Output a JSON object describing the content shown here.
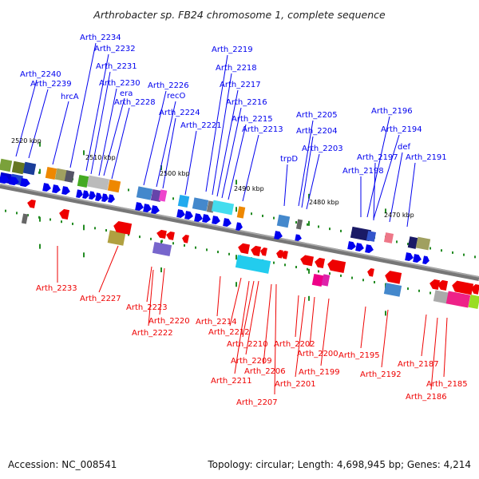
{
  "header": {
    "title": "Arthrobacter sp. FB24 chromosome 1, complete sequence"
  },
  "footer": {
    "accession": "Accession: NC_008541",
    "summary": "Topology: circular; Length: 4,698,945 bp; Genes: 4,214"
  },
  "colors": {
    "forward": "#0000ee",
    "reverse": "#ee0000",
    "backbone": "#777777",
    "tick": "#228b22"
  },
  "ticks": [
    "2520 kbp",
    "2510 kbp",
    "2500 kbp",
    "2490 kbp",
    "2480 kbp",
    "2470 kbp"
  ],
  "labels_forward": [
    "Arth_2240",
    "Arth_2239",
    "hrcA",
    "Arth_2234",
    "Arth_2232",
    "Arth_2231",
    "Arth_2230",
    "era",
    "Arth_2228",
    "Arth_2226",
    "recO",
    "Arth_2224",
    "Arth_2221",
    "Arth_2219",
    "Arth_2218",
    "Arth_2217",
    "Arth_2216",
    "Arth_2215",
    "Arth_2213",
    "trpD",
    "Arth_2205",
    "Arth_2204",
    "Arth_2203",
    "Arth_2196",
    "Arth_2194",
    "def",
    "Arth_2197",
    "Arth_2198",
    "Arth_2191"
  ],
  "labels_reverse": [
    "Arth_2233",
    "Arth_2227",
    "Arth_2223",
    "Arth_2220",
    "Arth_2222",
    "Arth_2214",
    "Arth_2212",
    "Arth_2210",
    "Arth_2209",
    "Arth_2211",
    "Arth_2206",
    "Arth_2207",
    "Arth_2202",
    "Arth_2200",
    "Arth_2201",
    "Arth_2199",
    "Arth_2195",
    "Arth_2192",
    "Arth_2187",
    "Arth_2185",
    "Arth_2186"
  ]
}
